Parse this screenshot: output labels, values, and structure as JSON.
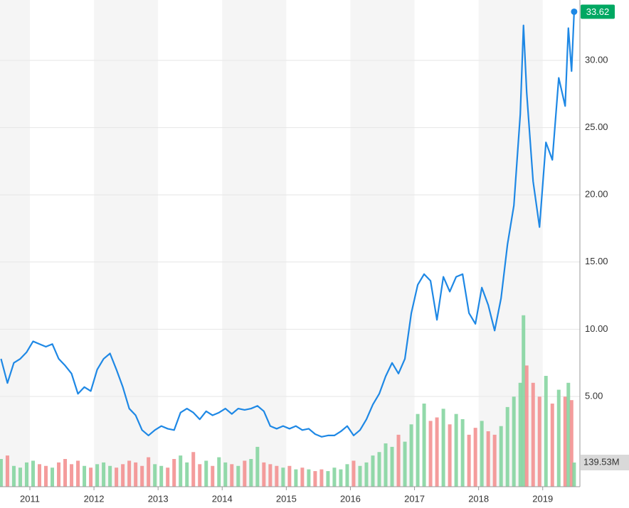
{
  "chart_data": {
    "type": "line",
    "x": [
      2010.55,
      2010.65,
      2010.75,
      2010.85,
      2010.95,
      2011.05,
      2011.15,
      2011.25,
      2011.35,
      2011.45,
      2011.55,
      2011.65,
      2011.75,
      2011.85,
      2011.95,
      2012.05,
      2012.15,
      2012.25,
      2012.35,
      2012.45,
      2012.55,
      2012.65,
      2012.75,
      2012.85,
      2012.95,
      2013.05,
      2013.15,
      2013.25,
      2013.35,
      2013.45,
      2013.55,
      2013.65,
      2013.75,
      2013.85,
      2013.95,
      2014.05,
      2014.15,
      2014.25,
      2014.35,
      2014.45,
      2014.55,
      2014.65,
      2014.75,
      2014.85,
      2014.95,
      2015.05,
      2015.15,
      2015.25,
      2015.35,
      2015.45,
      2015.55,
      2015.65,
      2015.75,
      2015.85,
      2015.95,
      2016.05,
      2016.15,
      2016.25,
      2016.35,
      2016.45,
      2016.55,
      2016.65,
      2016.75,
      2016.85,
      2016.95,
      2017.05,
      2017.15,
      2017.25,
      2017.35,
      2017.45,
      2017.55,
      2017.65,
      2017.75,
      2017.85,
      2017.95,
      2018.05,
      2018.15,
      2018.25,
      2018.35,
      2018.45,
      2018.55,
      2018.65,
      2018.7,
      2018.75,
      2018.85,
      2018.95,
      2019.05,
      2019.15,
      2019.25,
      2019.35,
      2019.4,
      2019.45,
      2019.49
    ],
    "xlim": [
      2010.534,
      2019.58
    ],
    "xticks": [
      2011,
      2012,
      2013,
      2014,
      2015,
      2016,
      2017,
      2018,
      2019
    ],
    "ylim": [
      -1.71,
      34.49
    ],
    "yticks": [
      {
        "value": 5,
        "label": "5.00"
      },
      {
        "value": 10,
        "label": "10.00"
      },
      {
        "value": 15,
        "label": "15.00"
      },
      {
        "value": 20,
        "label": "20.00"
      },
      {
        "value": 25,
        "label": "25.00"
      },
      {
        "value": 30,
        "label": "30.00"
      }
    ],
    "y2lim": [
      0,
      2811
    ],
    "grid": true,
    "series": [
      {
        "color": "#1e88e5",
        "values": [
          7.8,
          6.0,
          7.5,
          7.8,
          8.3,
          9.1,
          8.9,
          8.7,
          8.9,
          7.8,
          7.3,
          6.7,
          5.2,
          5.7,
          5.4,
          7.0,
          7.8,
          8.2,
          7.0,
          5.7,
          4.1,
          3.6,
          2.5,
          2.1,
          2.5,
          2.8,
          2.6,
          2.5,
          3.8,
          4.1,
          3.8,
          3.3,
          3.9,
          3.6,
          3.8,
          4.1,
          3.7,
          4.1,
          4.0,
          4.1,
          4.3,
          3.9,
          2.8,
          2.6,
          2.8,
          2.6,
          2.8,
          2.5,
          2.6,
          2.2,
          2.0,
          2.1,
          2.1,
          2.4,
          2.8,
          2.1,
          2.5,
          3.3,
          4.4,
          5.2,
          6.5,
          7.5,
          6.7,
          7.8,
          11.2,
          13.3,
          14.1,
          13.6,
          10.7,
          13.9,
          12.8,
          13.9,
          14.1,
          11.2,
          10.4,
          13.1,
          11.8,
          9.9,
          12.3,
          16.3,
          19.2,
          26.0,
          32.6,
          27.6,
          21.0,
          17.6,
          23.9,
          22.6,
          28.7,
          26.6,
          32.4,
          29.2,
          33.62
        ]
      },
      {
        "axis": "y2",
        "up_color": "#7fd29b",
        "down_color": "#f28b8b",
        "last_label": "139.53M",
        "values": [
          160,
          180,
          120,
          110,
          140,
          150,
          130,
          120,
          110,
          140,
          160,
          130,
          150,
          120,
          110,
          130,
          140,
          120,
          110,
          130,
          150,
          140,
          120,
          170,
          130,
          120,
          110,
          160,
          180,
          140,
          200,
          130,
          150,
          120,
          170,
          140,
          130,
          120,
          150,
          160,
          230,
          140,
          130,
          120,
          110,
          120,
          100,
          110,
          100,
          90,
          100,
          90,
          110,
          100,
          130,
          150,
          120,
          140,
          180,
          200,
          250,
          230,
          300,
          260,
          360,
          420,
          480,
          380,
          400,
          450,
          360,
          420,
          390,
          300,
          340,
          380,
          320,
          300,
          350,
          460,
          520,
          600,
          990,
          700,
          600,
          520,
          640,
          480,
          560,
          520,
          600,
          500,
          139.53
        ]
      }
    ]
  }
}
